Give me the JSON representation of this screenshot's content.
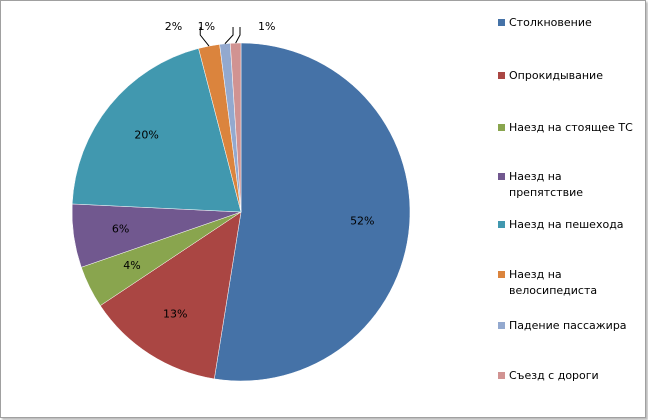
{
  "chart_data": {
    "type": "pie",
    "categories": [
      "Столкновение",
      "Опрокидывание",
      "Наезд на стоящее ТС",
      "Наезд на препятствие",
      "Наезд на пешехода",
      "Наезд на велосипедиста",
      "Падение пассажира",
      "Съезд с дороги"
    ],
    "values": [
      52,
      13,
      4,
      6,
      20,
      2,
      1,
      1
    ],
    "colors": [
      "#4572a7",
      "#aa4643",
      "#89a54e",
      "#71588f",
      "#4198af",
      "#db843d",
      "#93a9cf",
      "#d19392"
    ],
    "value_labels": [
      "52%",
      "13%",
      "4%",
      "6%",
      "20%",
      "2%",
      "1%",
      "1%"
    ],
    "legend": "right"
  }
}
